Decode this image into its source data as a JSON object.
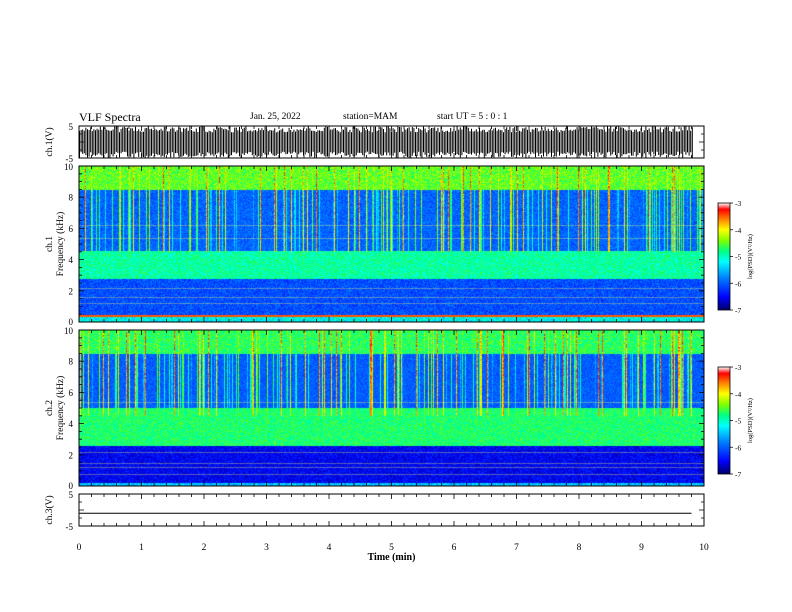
{
  "header": {
    "title": "VLF Spectra",
    "date": "Jan. 25, 2022",
    "station": "station=MAM",
    "start": "start UT =  5 : 0 : 1"
  },
  "chart_data": [
    {
      "type": "line",
      "id": "ch1_waveform",
      "ylabel": "ch.1(V)",
      "ylim": [
        -5,
        5
      ],
      "yticks": [
        "5",
        "-5"
      ],
      "xlim": [
        0,
        10
      ],
      "description_series": "ch.1 waveform, amplitude bursts filling approx. -5 to 5 V"
    },
    {
      "type": "heatmap",
      "id": "ch1_spectrogram",
      "ylabel": "ch.1",
      "ylabel2": "Frequency (kHz)",
      "ylim": [
        0,
        10
      ],
      "yticks": [
        "0",
        "2",
        "4",
        "6",
        "8",
        "10"
      ],
      "xlim": [
        0,
        10
      ],
      "colorbar": {
        "label": "log(PSD)(V²/Hz)",
        "range": [
          -7,
          -3
        ],
        "ticks": [
          "-3",
          "-4",
          "-5",
          "-6",
          "-7"
        ]
      }
    },
    {
      "type": "heatmap",
      "id": "ch2_spectrogram",
      "ylabel": "ch.2",
      "ylabel2": "Frequency (kHz)",
      "ylim": [
        0,
        10
      ],
      "yticks": [
        "0",
        "2",
        "4",
        "6",
        "8",
        "10"
      ],
      "xlim": [
        0,
        10
      ],
      "colorbar": {
        "label": "log(PSD)(V²/Hz)",
        "range": [
          -7,
          -3
        ],
        "ticks": [
          "-3",
          "-4",
          "-5",
          "-6",
          "-7"
        ]
      }
    },
    {
      "type": "line",
      "id": "ch3_waveform",
      "ylabel": "ch.3(V)",
      "ylim": [
        -5,
        5
      ],
      "yticks": [
        "5",
        "-5"
      ],
      "xlim": [
        0,
        10
      ],
      "x": [
        0,
        9.8
      ],
      "y": [
        -1,
        -1
      ]
    }
  ],
  "xaxis": {
    "label": "Time (min)",
    "ticks": [
      "0",
      "1",
      "2",
      "3",
      "4",
      "5",
      "6",
      "7",
      "8",
      "9",
      "10"
    ],
    "range": [
      0,
      10
    ]
  },
  "colors": {
    "axis": "#000000",
    "cmap": [
      "#000066",
      "#0000ff",
      "#0080ff",
      "#00ffff",
      "#00ff80",
      "#80ff00",
      "#ffff00",
      "#ff8000",
      "#ff0000",
      "#ffffff"
    ]
  }
}
